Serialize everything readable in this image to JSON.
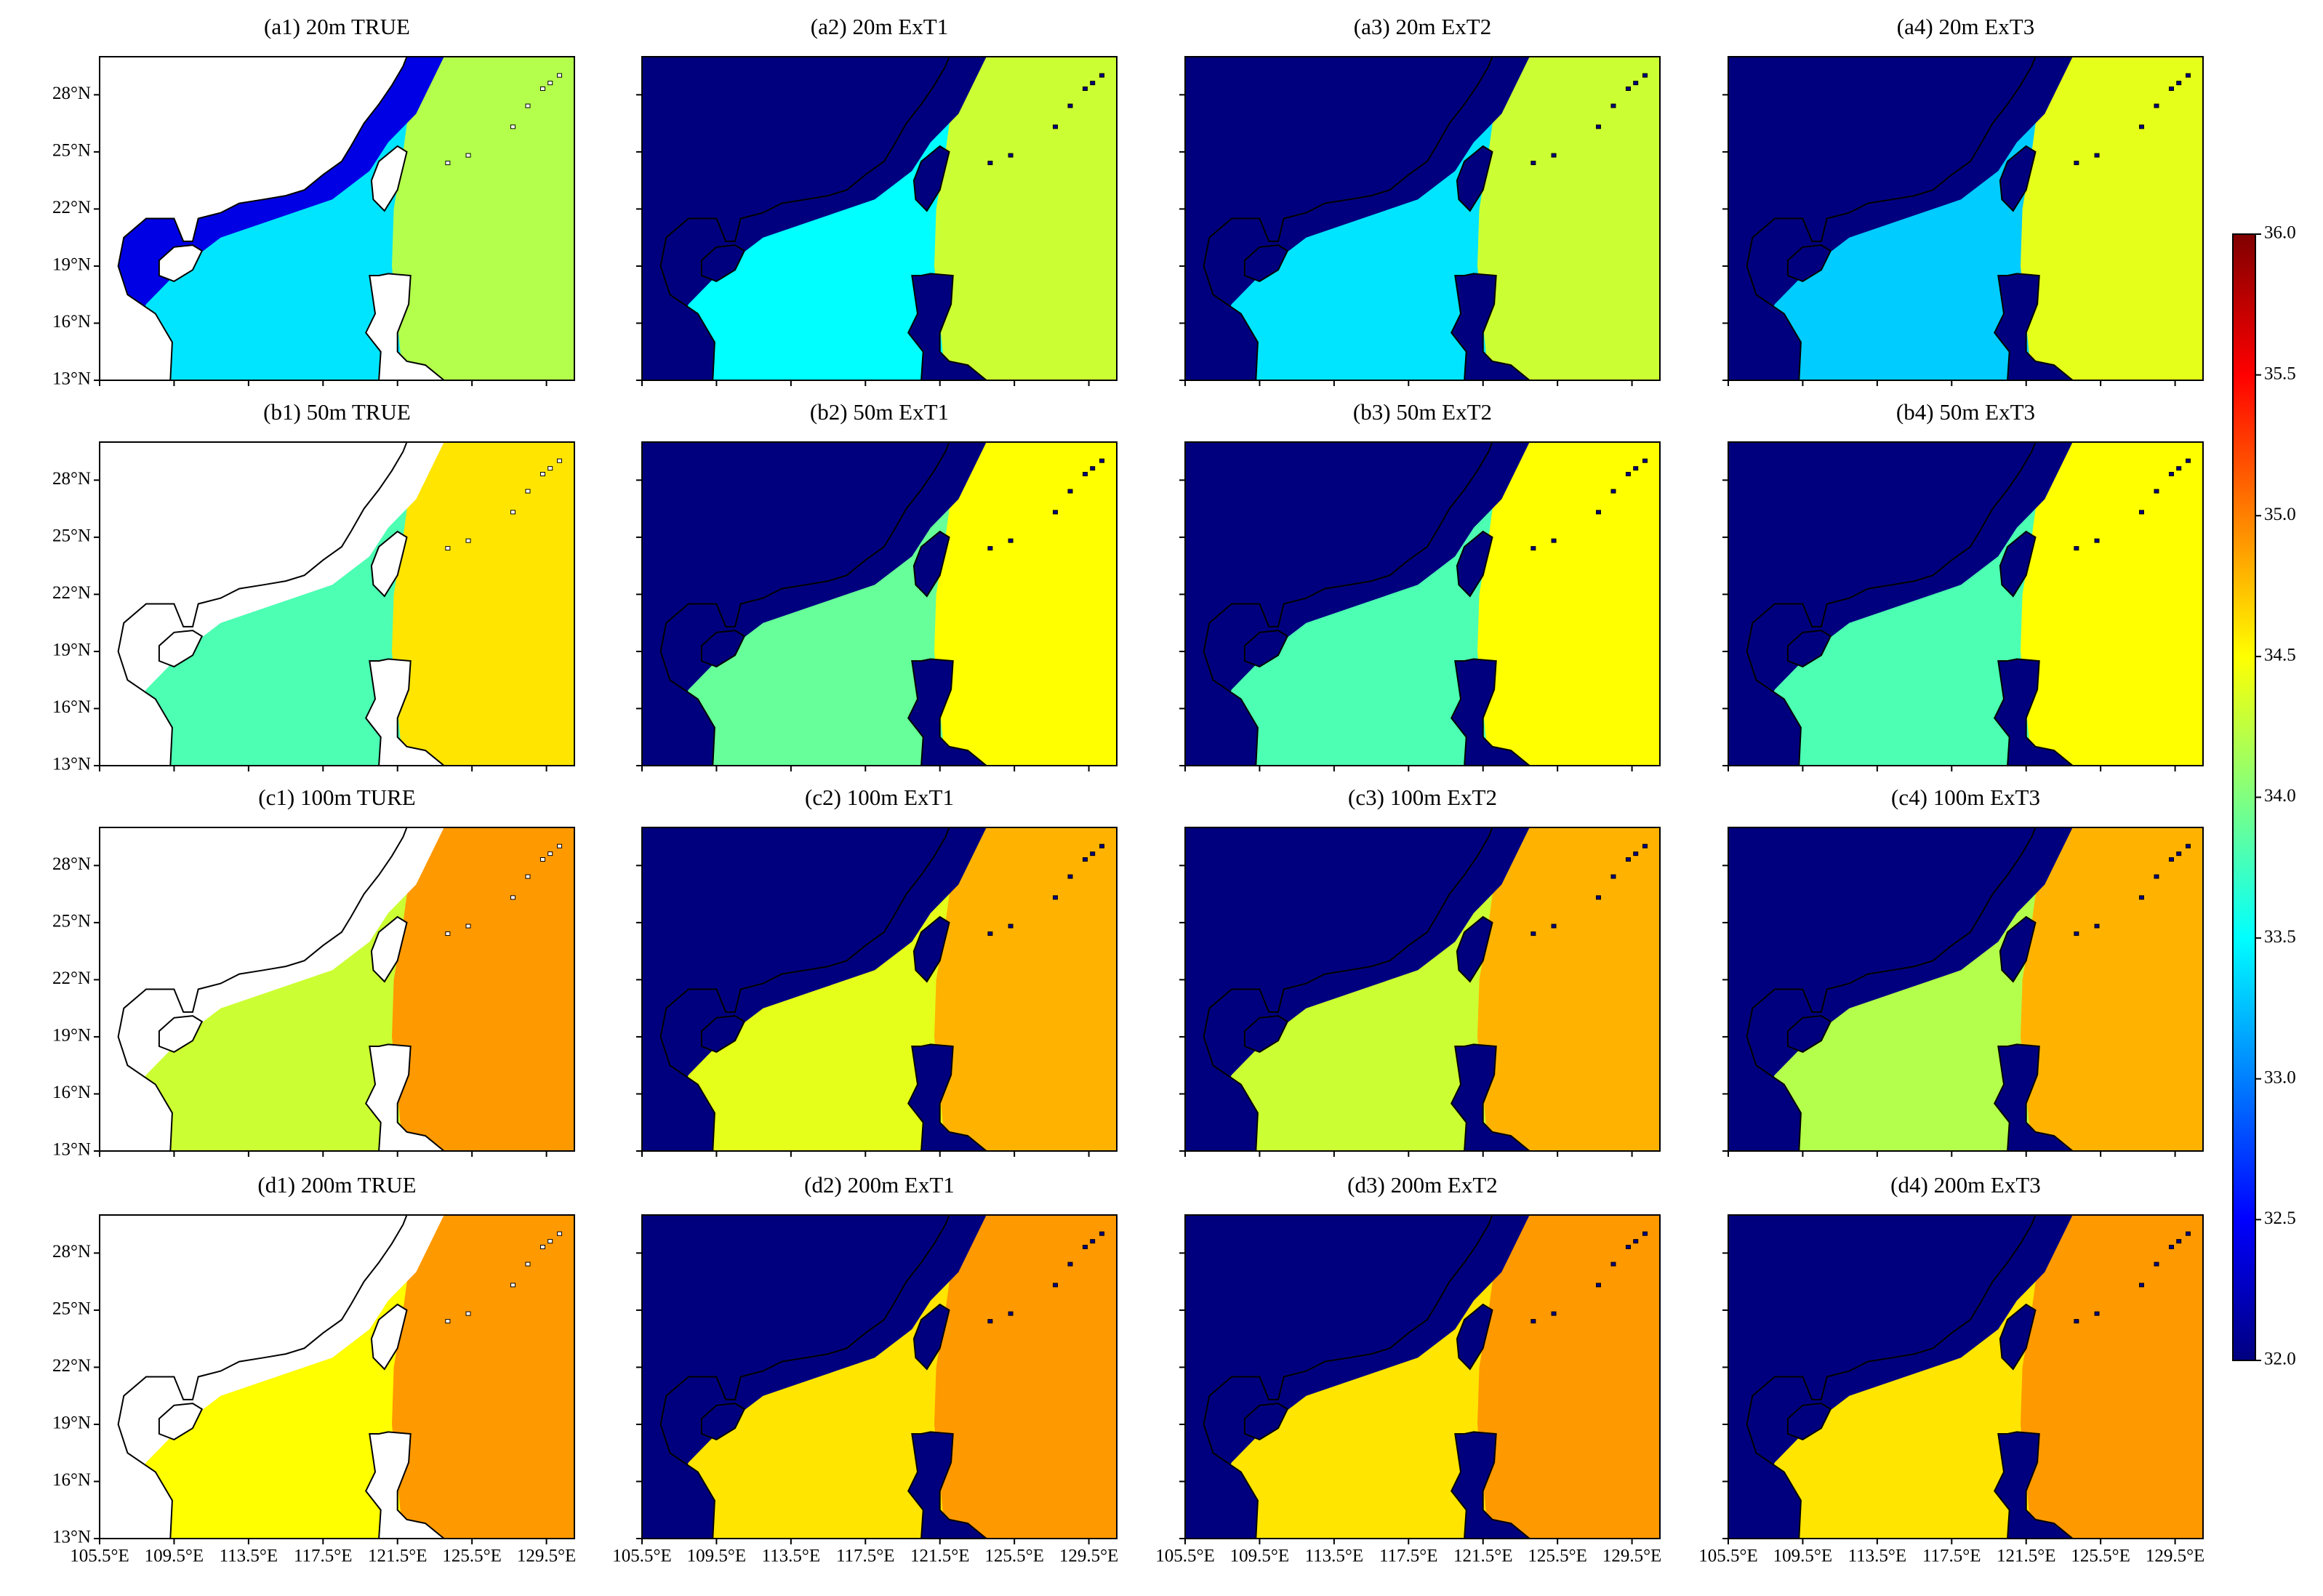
{
  "figure": {
    "xlim": [
      105.5,
      131
    ],
    "ylim": [
      13,
      30
    ],
    "xticks": [
      {
        "value": 105.5,
        "label": "105.5°E"
      },
      {
        "value": 109.5,
        "label": "109.5°E"
      },
      {
        "value": 113.5,
        "label": "113.5°E"
      },
      {
        "value": 117.5,
        "label": "117.5°E"
      },
      {
        "value": 121.5,
        "label": "121.5°E"
      },
      {
        "value": 125.5,
        "label": "125.5°E"
      },
      {
        "value": 129.5,
        "label": "129.5°E"
      }
    ],
    "yticks": [
      {
        "value": 13,
        "label": "13°N"
      },
      {
        "value": 16,
        "label": "16°N"
      },
      {
        "value": 19,
        "label": "19°N"
      },
      {
        "value": 22,
        "label": "22°N"
      },
      {
        "value": 25,
        "label": "25°N"
      },
      {
        "value": 28,
        "label": "28°N"
      }
    ],
    "colorbar": {
      "colormap": "jet",
      "lim": [
        32,
        36
      ],
      "ticks": [
        {
          "value": 32,
          "label": "32.0"
        },
        {
          "value": 32.5,
          "label": "32.5"
        },
        {
          "value": 33,
          "label": "33.0"
        },
        {
          "value": 33.5,
          "label": "33.5"
        },
        {
          "value": 34,
          "label": "34.0"
        },
        {
          "value": 34.5,
          "label": "34.5"
        },
        {
          "value": 35,
          "label": "35.0"
        },
        {
          "value": 35.5,
          "label": "35.5"
        },
        {
          "value": 36,
          "label": "36.0"
        }
      ]
    },
    "panels": [
      {
        "title": "(a1) 20m TRUE",
        "mask_color": "#ffffff",
        "regions": {
          "shelf": 32.4,
          "scs": 33.4,
          "wp": 34.2
        }
      },
      {
        "title": "(a2) 20m ExT1",
        "mask_color": "#00007f",
        "regions": {
          "shelf": null,
          "scs": 33.5,
          "wp": 34.3
        }
      },
      {
        "title": "(a3) 20m ExT2",
        "mask_color": "#00007f",
        "regions": {
          "shelf": null,
          "scs": 33.4,
          "wp": 34.3
        }
      },
      {
        "title": "(a4) 20m ExT3",
        "mask_color": "#00007f",
        "regions": {
          "shelf": null,
          "scs": 33.3,
          "wp": 34.4
        }
      },
      {
        "title": "(b1) 50m TRUE",
        "mask_color": "#ffffff",
        "regions": {
          "shelf": null,
          "scs": 33.8,
          "wp": 34.6
        }
      },
      {
        "title": "(b2) 50m ExT1",
        "mask_color": "#00007f",
        "regions": {
          "shelf": null,
          "scs": 33.9,
          "wp": 34.5
        }
      },
      {
        "title": "(b3) 50m ExT2",
        "mask_color": "#00007f",
        "regions": {
          "shelf": null,
          "scs": 33.8,
          "wp": 34.5
        }
      },
      {
        "title": "(b4) 50m ExT3",
        "mask_color": "#00007f",
        "regions": {
          "shelf": null,
          "scs": 33.8,
          "wp": 34.5
        }
      },
      {
        "title": "(c1) 100m TURE",
        "mask_color": "#ffffff",
        "regions": {
          "shelf": null,
          "scs": 34.3,
          "wp": 34.9
        }
      },
      {
        "title": "(c2) 100m ExT1",
        "mask_color": "#00007f",
        "regions": {
          "shelf": null,
          "scs": 34.4,
          "wp": 34.8
        }
      },
      {
        "title": "(c3) 100m ExT2",
        "mask_color": "#00007f",
        "regions": {
          "shelf": null,
          "scs": 34.3,
          "wp": 34.8
        }
      },
      {
        "title": "(c4) 100m ExT3",
        "mask_color": "#00007f",
        "regions": {
          "shelf": null,
          "scs": 34.2,
          "wp": 34.8
        }
      },
      {
        "title": "(d1) 200m TRUE",
        "mask_color": "#ffffff",
        "regions": {
          "shelf": null,
          "scs": 34.5,
          "wp": 34.9
        }
      },
      {
        "title": "(d2) 200m ExT1",
        "mask_color": "#00007f",
        "regions": {
          "shelf": null,
          "scs": 34.6,
          "wp": 34.9
        }
      },
      {
        "title": "(d3) 200m ExT2",
        "mask_color": "#00007f",
        "regions": {
          "shelf": null,
          "scs": 34.6,
          "wp": 34.9
        }
      },
      {
        "title": "(d4) 200m ExT3",
        "mask_color": "#00007f",
        "regions": {
          "shelf": null,
          "scs": 34.6,
          "wp": 34.9
        }
      }
    ]
  }
}
